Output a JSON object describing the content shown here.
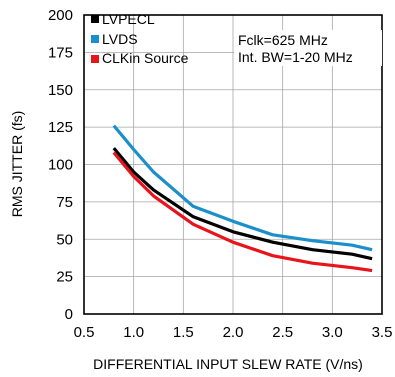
{
  "chart_data": {
    "type": "line",
    "xlabel": "DIFFERENTIAL INPUT SLEW RATE (V/ns)",
    "ylabel": "RMS JITTER (fs)",
    "xlim": [
      0.5,
      3.5
    ],
    "ylim": [
      0,
      200
    ],
    "xticks": [
      0.5,
      1.0,
      1.5,
      2.0,
      2.5,
      3.0,
      3.5
    ],
    "xtick_labels": [
      "0.5",
      "1.0",
      "1.5",
      "2.0",
      "2.5",
      "3.0",
      "3.5"
    ],
    "yticks": [
      0,
      25,
      50,
      75,
      100,
      125,
      150,
      175,
      200
    ],
    "ytick_labels": [
      "0",
      "25",
      "50",
      "75",
      "100",
      "125",
      "150",
      "175",
      "200"
    ],
    "grid": true,
    "legend_position": "top-left",
    "annotations": [
      "Fclk=625 MHz",
      "Int. BW=1-20 MHz"
    ],
    "series": [
      {
        "name": "LVPECL",
        "color": "#000000",
        "x": [
          0.8,
          1.0,
          1.2,
          1.6,
          2.0,
          2.4,
          2.8,
          3.2,
          3.4
        ],
        "y": [
          111,
          95,
          83,
          65,
          55,
          48,
          43,
          40,
          37
        ]
      },
      {
        "name": "LVDS",
        "color": "#1a8fc9",
        "x": [
          0.8,
          1.0,
          1.2,
          1.6,
          2.0,
          2.4,
          2.8,
          3.2,
          3.4
        ],
        "y": [
          126,
          110,
          95,
          72,
          62,
          53,
          49,
          46,
          43
        ]
      },
      {
        "name": "CLKin Source",
        "color": "#e8141c",
        "x": [
          0.8,
          1.0,
          1.2,
          1.6,
          2.0,
          2.4,
          2.8,
          3.2,
          3.4
        ],
        "y": [
          108,
          92,
          79,
          60,
          48,
          39,
          34,
          31,
          29
        ]
      }
    ]
  }
}
